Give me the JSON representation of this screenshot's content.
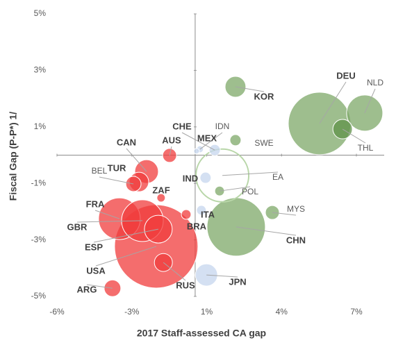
{
  "chart_data": {
    "type": "bubble",
    "x_label": "2017 Staff-assessed CA gap",
    "y_label": "Fiscal Gap (P-P*) 1/",
    "xlim": [
      -6,
      7
    ],
    "xticks": [
      {
        "value": -6,
        "label": "-6%"
      },
      {
        "value": -2.75,
        "label": "-3%"
      },
      {
        "value": 0.5,
        "label": "1%"
      },
      {
        "value": 3.75,
        "label": "4%"
      },
      {
        "value": 7,
        "label": "7%"
      }
    ],
    "ylim": [
      -5,
      5
    ],
    "yticks": [
      {
        "value": 5,
        "label": "5%"
      },
      {
        "value": 3,
        "label": "3%"
      },
      {
        "value": 1,
        "label": "1%"
      },
      {
        "value": -1,
        "label": "-1%"
      },
      {
        "value": -3,
        "label": "-3%"
      },
      {
        "value": -5,
        "label": "-5%"
      }
    ],
    "points": [
      {
        "label": "DEU",
        "x": 5.4,
        "y": 1.12,
        "size": 506,
        "color": "#7ea868"
      },
      {
        "label": "NLD",
        "x": 7.36,
        "y": 1.49,
        "size": 169,
        "color": "#7ea868"
      },
      {
        "label": "THL",
        "x": 6.4,
        "y": 0.92,
        "size": 49,
        "color": "#5f9148"
      },
      {
        "label": "KOR",
        "x": 1.75,
        "y": 2.42,
        "size": 56,
        "color": "#7ea868"
      },
      {
        "label": "CHE",
        "x": 0.85,
        "y": 0.18,
        "size": 16,
        "color": "#c5d6ee"
      },
      {
        "label": "IDN",
        "x": 0.21,
        "y": 0.21,
        "size": 6,
        "color": "#c5d6ee"
      },
      {
        "label": "MEX",
        "x": 0.06,
        "y": 0.14,
        "size": 4,
        "color": "#c5d6ee"
      },
      {
        "label": "SWE",
        "x": 1.75,
        "y": 0.53,
        "size": 16,
        "color": "#7ea868"
      },
      {
        "label": "EA",
        "x": 1.18,
        "y": -0.72,
        "size": 361,
        "color": "#b8d6a8",
        "style": "outline"
      },
      {
        "label": "POL",
        "x": 1.06,
        "y": -1.27,
        "size": 12,
        "color": "#7ea868"
      },
      {
        "label": "IND",
        "x": 0.45,
        "y": -0.8,
        "size": 16,
        "color": "#c5d6ee"
      },
      {
        "label": "ITA",
        "x": 0.27,
        "y": -1.95,
        "size": 12,
        "color": "#c5d6ee"
      },
      {
        "label": "MYS",
        "x": 3.35,
        "y": -2.03,
        "size": 25,
        "color": "#7ea868"
      },
      {
        "label": "CHN",
        "x": 1.78,
        "y": -2.54,
        "size": 441,
        "color": "#7ea868"
      },
      {
        "label": "JPN",
        "x": 0.49,
        "y": -4.24,
        "size": 64,
        "color": "#c5d6ee"
      },
      {
        "label": "BRA",
        "x": -0.39,
        "y": -2.1,
        "size": 12,
        "color": "#f03c3c"
      },
      {
        "label": "ZAF",
        "x": -1.48,
        "y": -1.51,
        "size": 9,
        "color": "#f03c3c"
      },
      {
        "label": "AUS",
        "x": -1.11,
        "y": -0.01,
        "size": 25,
        "color": "#f03c3c"
      },
      {
        "label": "CAN",
        "x": -2.11,
        "y": -0.58,
        "size": 72,
        "color": "#f03c3c"
      },
      {
        "label": "TUR",
        "x": -2.44,
        "y": -0.95,
        "size": 49,
        "color": "#f03c3c"
      },
      {
        "label": "BEL",
        "x": -2.68,
        "y": -1.02,
        "size": 30,
        "color": "#f03c3c"
      },
      {
        "label": "FRA",
        "x": -3.29,
        "y": -2.25,
        "size": 225,
        "color": "#f03c3c"
      },
      {
        "label": "GBR",
        "x": -2.29,
        "y": -2.32,
        "size": 225,
        "color": "#f03c3c"
      },
      {
        "label": "ESP",
        "x": -1.6,
        "y": -2.62,
        "size": 100,
        "color": "#f03c3c"
      },
      {
        "label": "USA",
        "x": -1.69,
        "y": -3.23,
        "size": 900,
        "color": "#f03c3c"
      },
      {
        "label": "RUS",
        "x": -1.38,
        "y": -3.8,
        "size": 42,
        "color": "#f03c3c"
      },
      {
        "label": "ARG",
        "x": -3.59,
        "y": -4.71,
        "size": 36,
        "color": "#f03c3c"
      }
    ]
  }
}
